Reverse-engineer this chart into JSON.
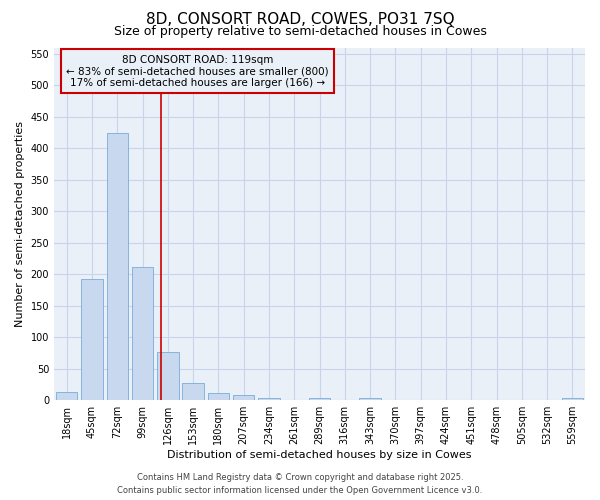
{
  "title": "8D, CONSORT ROAD, COWES, PO31 7SQ",
  "subtitle": "Size of property relative to semi-detached houses in Cowes",
  "xlabel": "Distribution of semi-detached houses by size in Cowes",
  "ylabel": "Number of semi-detached properties",
  "categories": [
    "18sqm",
    "45sqm",
    "72sqm",
    "99sqm",
    "126sqm",
    "153sqm",
    "180sqm",
    "207sqm",
    "234sqm",
    "261sqm",
    "289sqm",
    "316sqm",
    "343sqm",
    "370sqm",
    "397sqm",
    "424sqm",
    "451sqm",
    "478sqm",
    "505sqm",
    "532sqm",
    "559sqm"
  ],
  "values": [
    13,
    193,
    425,
    212,
    77,
    27,
    11,
    8,
    3,
    0,
    4,
    0,
    4,
    0,
    0,
    0,
    0,
    0,
    0,
    0,
    3
  ],
  "bar_color": "#c8d8ee",
  "bar_edge_color": "#7aabdb",
  "grid_color": "#c8d4e8",
  "bg_color": "#ffffff",
  "plot_bg_color": "#eaf0f8",
  "vline_x": 3.74,
  "vline_color": "#cc0000",
  "ylim": [
    0,
    560
  ],
  "yticks": [
    0,
    50,
    100,
    150,
    200,
    250,
    300,
    350,
    400,
    450,
    500,
    550
  ],
  "annotation_title": "8D CONSORT ROAD: 119sqm",
  "annotation_line1": "← 83% of semi-detached houses are smaller (800)",
  "annotation_line2": "17% of semi-detached houses are larger (166) →",
  "annotation_box_color": "#cc0000",
  "footer_line1": "Contains HM Land Registry data © Crown copyright and database right 2025.",
  "footer_line2": "Contains public sector information licensed under the Open Government Licence v3.0.",
  "title_fontsize": 11,
  "subtitle_fontsize": 9,
  "annotation_fontsize": 7.5,
  "footer_fontsize": 6,
  "xlabel_fontsize": 8,
  "ylabel_fontsize": 8,
  "tick_fontsize": 7
}
